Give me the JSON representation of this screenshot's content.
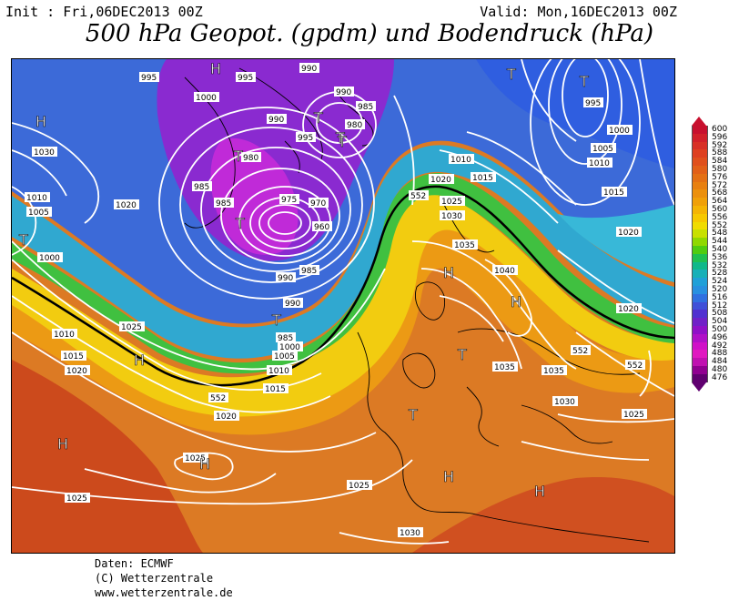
{
  "header": {
    "init": "Init : Fri,06DEC2013 00Z",
    "valid": "Valid: Mon,16DEC2013 00Z",
    "title": "500 hPa Geopot. (gpdm) und Bodendruck (hPa)"
  },
  "colorbar": {
    "labels": [
      "600",
      "596",
      "592",
      "588",
      "584",
      "580",
      "576",
      "572",
      "568",
      "564",
      "560",
      "556",
      "552",
      "548",
      "544",
      "540",
      "536",
      "532",
      "528",
      "524",
      "520",
      "516",
      "512",
      "508",
      "504",
      "500",
      "496",
      "492",
      "488",
      "484",
      "480",
      "476"
    ],
    "colors": [
      "#c8102e",
      "#d2202a",
      "#d83026",
      "#de4020",
      "#e0501c",
      "#e26018",
      "#e47014",
      "#e88010",
      "#ec900c",
      "#f0a008",
      "#f4b404",
      "#f6c800",
      "#f0dc00",
      "#c8e000",
      "#90d800",
      "#50cc10",
      "#20c050",
      "#10b88a",
      "#18b0b8",
      "#20a0d8",
      "#2890e0",
      "#3070e0",
      "#4050d8",
      "#5030d0",
      "#7020c8",
      "#9010c8",
      "#b010c8",
      "#d010c8",
      "#e018c0",
      "#c010b0",
      "#900090",
      "#600070"
    ]
  },
  "pressure_labels": [
    {
      "text": "1030"
    },
    {
      "text": "1010"
    },
    {
      "text": "1005"
    },
    {
      "text": "1000"
    },
    {
      "text": "1020"
    },
    {
      "text": "995"
    },
    {
      "text": "1000"
    },
    {
      "text": "995"
    },
    {
      "text": "990"
    },
    {
      "text": "990"
    },
    {
      "text": "990"
    },
    {
      "text": "985"
    },
    {
      "text": "995"
    },
    {
      "text": "980"
    },
    {
      "text": "980"
    },
    {
      "text": "985"
    },
    {
      "text": "985"
    },
    {
      "text": "975"
    },
    {
      "text": "970"
    },
    {
      "text": "960"
    },
    {
      "text": "985"
    },
    {
      "text": "990"
    },
    {
      "text": "990"
    },
    {
      "text": "985"
    },
    {
      "text": "1000"
    },
    {
      "text": "1005"
    },
    {
      "text": "1010"
    },
    {
      "text": "1015"
    },
    {
      "text": "1020"
    },
    {
      "text": "1010"
    },
    {
      "text": "1015"
    },
    {
      "text": "1020"
    },
    {
      "text": "1025"
    },
    {
      "text": "1025"
    },
    {
      "text": "1025"
    },
    {
      "text": "1025"
    },
    {
      "text": "1030"
    },
    {
      "text": "1010"
    },
    {
      "text": "1020"
    },
    {
      "text": "1015"
    },
    {
      "text": "1025"
    },
    {
      "text": "1030"
    },
    {
      "text": "1035"
    },
    {
      "text": "1040"
    },
    {
      "text": "1035"
    },
    {
      "text": "1035"
    },
    {
      "text": "1030"
    },
    {
      "text": "1025"
    },
    {
      "text": "995"
    },
    {
      "text": "1000"
    },
    {
      "text": "1005"
    },
    {
      "text": "1010"
    },
    {
      "text": "1015"
    },
    {
      "text": "1020"
    },
    {
      "text": "1020"
    },
    {
      "text": "552"
    },
    {
      "text": "552"
    },
    {
      "text": "552"
    },
    {
      "text": "552"
    }
  ],
  "pressure_centers": [
    {
      "text": "H"
    },
    {
      "text": "H"
    },
    {
      "text": "T"
    },
    {
      "text": "T"
    },
    {
      "text": "T"
    },
    {
      "text": "T"
    },
    {
      "text": "T"
    },
    {
      "text": "T"
    },
    {
      "text": "T"
    },
    {
      "text": "H"
    },
    {
      "text": "H"
    },
    {
      "text": "H"
    },
    {
      "text": "T"
    },
    {
      "text": "T"
    },
    {
      "text": "H"
    },
    {
      "text": "H"
    },
    {
      "text": "H"
    },
    {
      "text": "H"
    },
    {
      "text": "T"
    },
    {
      "text": "T"
    }
  ],
  "footer": {
    "line1": "Daten: ECMWF",
    "line2": "(C) Wetterzentrale",
    "line3": "www.wetterzentrale.de"
  }
}
